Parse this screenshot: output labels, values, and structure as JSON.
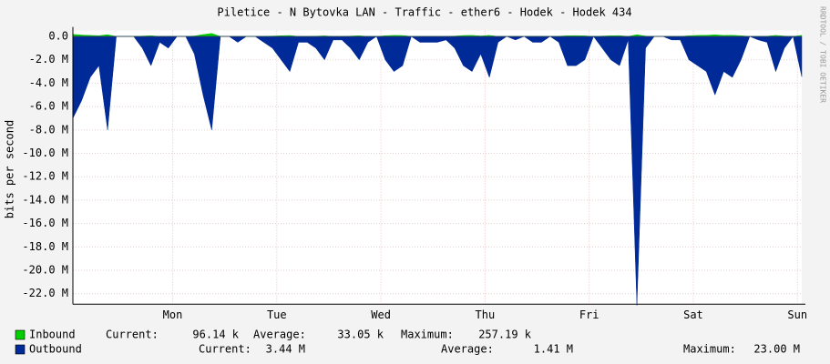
{
  "chart_data": {
    "type": "area",
    "title": "Piletice - N Bytovka LAN - Traffic - ether6 - Hodek - Hodek 434",
    "y_label": "bits per second",
    "watermark": "RRDTOOL / TOBI OETIKER",
    "x": [
      0,
      2,
      4,
      6,
      8,
      10,
      12,
      14,
      16,
      18,
      20,
      22,
      24,
      26,
      28,
      30,
      32,
      34,
      36,
      38,
      40,
      42,
      44,
      46,
      48,
      50,
      52,
      54,
      56,
      58,
      60,
      62,
      64,
      66,
      68,
      70,
      72,
      74,
      76,
      78,
      80,
      82,
      84,
      86,
      88,
      90,
      92,
      94,
      96,
      98,
      100,
      102,
      104,
      106,
      108,
      110,
      112,
      114,
      116,
      118,
      120,
      122,
      124,
      126,
      128,
      130,
      132,
      134,
      136,
      138,
      140,
      142,
      144,
      146,
      148,
      150,
      152,
      154,
      156,
      158,
      160,
      162,
      164,
      166,
      168
    ],
    "xlim": [
      0,
      168
    ],
    "xticks": [
      {
        "value": 23,
        "label": "Mon"
      },
      {
        "value": 47,
        "label": "Tue"
      },
      {
        "value": 71,
        "label": "Wed"
      },
      {
        "value": 95,
        "label": "Thu"
      },
      {
        "value": 119,
        "label": "Fri"
      },
      {
        "value": 143,
        "label": "Sat"
      },
      {
        "value": 167,
        "label": "Sun"
      }
    ],
    "ylim": [
      -22900000,
      500000
    ],
    "yticks": [
      {
        "value": 0,
        "label": "0.0"
      },
      {
        "value": -2000000,
        "label": "-2.0 M"
      },
      {
        "value": -4000000,
        "label": "-4.0 M"
      },
      {
        "value": -6000000,
        "label": "-6.0 M"
      },
      {
        "value": -8000000,
        "label": "-8.0 M"
      },
      {
        "value": -10000000,
        "label": "-10.0 M"
      },
      {
        "value": -12000000,
        "label": "-12.0 M"
      },
      {
        "value": -14000000,
        "label": "-14.0 M"
      },
      {
        "value": -16000000,
        "label": "-16.0 M"
      },
      {
        "value": -18000000,
        "label": "-18.0 M"
      },
      {
        "value": -20000000,
        "label": "-20.0 M"
      },
      {
        "value": -22000000,
        "label": "-22.0 M"
      }
    ],
    "grid": true,
    "series": [
      {
        "name": "Inbound",
        "color": "#00cf00",
        "current_label": "Current:",
        "current": "96.14 k",
        "average_label": "Average:",
        "average": "33.05 k",
        "maximum_label": "Maximum:",
        "maximum": "257.19 k",
        "values": [
          180000,
          120000,
          90000,
          60000,
          150000,
          0,
          0,
          0,
          30000,
          60000,
          0,
          20000,
          0,
          0,
          40000,
          160000,
          257190,
          0,
          0,
          0,
          0,
          0,
          20000,
          30000,
          60000,
          80000,
          0,
          0,
          20000,
          50000,
          0,
          0,
          30000,
          60000,
          0,
          0,
          60000,
          90000,
          80000,
          0,
          0,
          0,
          0,
          0,
          30000,
          80000,
          90000,
          40000,
          90000,
          0,
          0,
          0,
          0,
          20000,
          20000,
          0,
          20000,
          60000,
          70000,
          50000,
          0,
          30000,
          60000,
          70000,
          0,
          150000,
          30000,
          0,
          0,
          0,
          0,
          60000,
          90000,
          100000,
          140000,
          90000,
          100000,
          60000,
          0,
          0,
          20000,
          90000,
          30000,
          0,
          96140
        ]
      },
      {
        "name": "Outbound",
        "color": "#002a97",
        "current_label": "Current:",
        "current": "3.44 M",
        "average_label": "Average:",
        "average": "1.41 M",
        "maximum_label": "Maximum:",
        "maximum": "23.00 M",
        "values": [
          -7000000,
          -5500000,
          -3500000,
          -2500000,
          -8000000,
          0,
          0,
          0,
          -1000000,
          -2500000,
          -500000,
          -1000000,
          0,
          0,
          -1500000,
          -5000000,
          -8000000,
          0,
          0,
          -500000,
          0,
          0,
          -500000,
          -1000000,
          -2000000,
          -3000000,
          -500000,
          -500000,
          -1000000,
          -2000000,
          -300000,
          -300000,
          -1000000,
          -2000000,
          -500000,
          0,
          -2000000,
          -3000000,
          -2500000,
          0,
          -500000,
          -500000,
          -500000,
          -300000,
          -1000000,
          -2500000,
          -3000000,
          -1500000,
          -3500000,
          -500000,
          0,
          -300000,
          0,
          -500000,
          -500000,
          0,
          -500000,
          -2500000,
          -2500000,
          -2000000,
          0,
          -1000000,
          -2000000,
          -2500000,
          -300000,
          -23000000,
          -1000000,
          0,
          0,
          -300000,
          -300000,
          -2000000,
          -2500000,
          -3000000,
          -5000000,
          -3000000,
          -3500000,
          -2000000,
          0,
          -300000,
          -500000,
          -3000000,
          -1000000,
          0,
          -3440000
        ]
      }
    ]
  }
}
